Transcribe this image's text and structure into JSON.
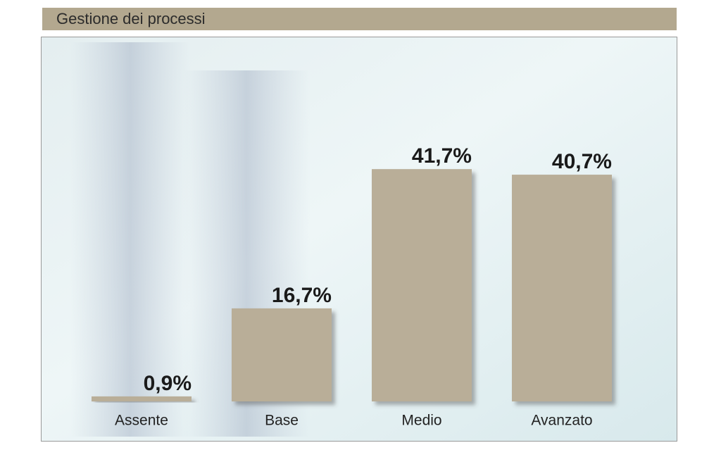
{
  "chart_data": {
    "type": "bar",
    "title": "Gestione dei processi",
    "categories": [
      "Assente",
      "Base",
      "Medio",
      "Avanzato"
    ],
    "values": [
      0.9,
      16.7,
      41.7,
      40.7
    ],
    "value_labels": [
      "0,9%",
      "16,7%",
      "41,7%",
      "40,7%"
    ],
    "color": "#b9ae98"
  }
}
